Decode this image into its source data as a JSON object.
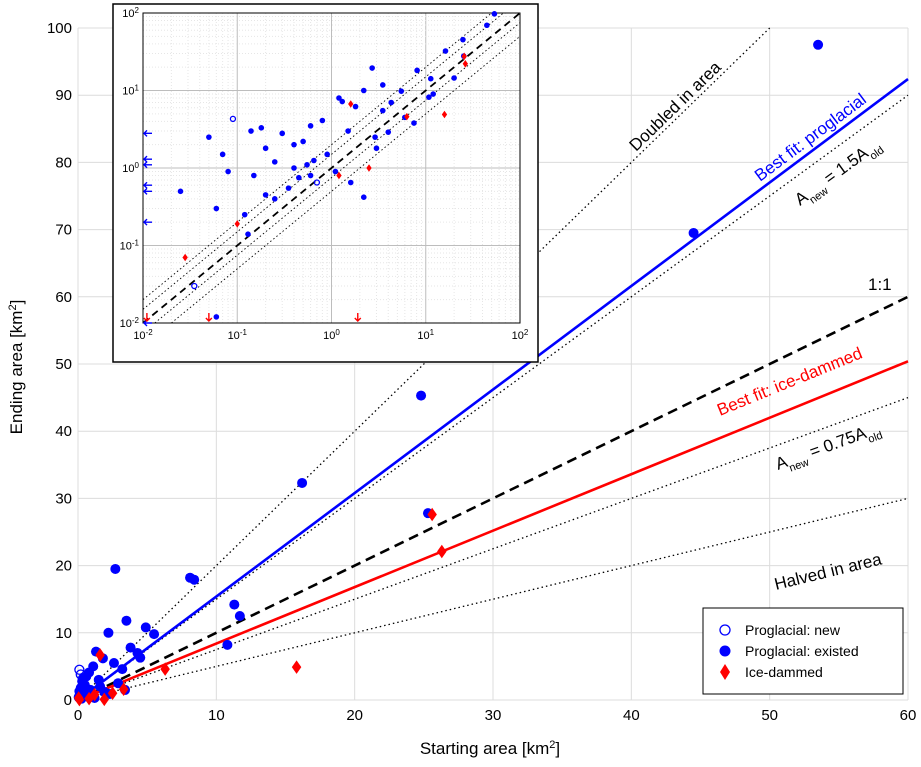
{
  "chart_data": [
    {
      "type": "scatter",
      "title": "",
      "xlabel": "Starting area [km",
      "xlabel_sup": "2",
      "xlabel_end": "]",
      "ylabel": "Ending area [km",
      "ylabel_sup": "2",
      "ylabel_end": "]",
      "xlim": [
        0,
        60
      ],
      "ylim": [
        0,
        100
      ],
      "x_ticks": [
        0,
        10,
        20,
        30,
        40,
        50,
        60
      ],
      "y_ticks": [
        0,
        10,
        20,
        30,
        40,
        50,
        60,
        70,
        80,
        90,
        100
      ],
      "grid": true,
      "legend_position": "bottom-right",
      "legend": [
        {
          "label": "Proglacial: new",
          "marker": "open-circle",
          "color": "#0000ff"
        },
        {
          "label": "Proglacial: existed",
          "marker": "filled-circle",
          "color": "#0000ff"
        },
        {
          "label": "Ice-dammed",
          "marker": "diamond",
          "color": "#ff0000"
        }
      ],
      "reference_lines": [
        {
          "label": "Doubled in area",
          "slope": 2.0,
          "style": "dotted",
          "color": "#000000"
        },
        {
          "label_main": "A",
          "label_sub1": "new",
          "label_mid": " = 1.5A",
          "label_sub2": "old",
          "slope": 1.5,
          "style": "dotted",
          "color": "#000000"
        },
        {
          "label": "1:1",
          "slope": 1.0,
          "style": "dashed",
          "color": "#000000"
        },
        {
          "label_main": "A",
          "label_sub1": "new",
          "label_mid": " = 0.75A",
          "label_sub2": "old",
          "slope": 0.75,
          "style": "dotted",
          "color": "#000000"
        },
        {
          "label": "Halved in area",
          "slope": 0.5,
          "style": "dotted",
          "color": "#000000"
        }
      ],
      "fit_lines": [
        {
          "label": "Best fit: proglacial",
          "slope": 1.54,
          "intercept": 0,
          "color": "#0000ff"
        },
        {
          "label": "Best fit: ice-dammed",
          "slope": 0.84,
          "intercept": 0,
          "color": "#ff0000"
        }
      ],
      "series": [
        {
          "name": "Proglacial: new",
          "marker": "open-circle",
          "color": "#0000ff",
          "points": [
            [
              0.1,
              4.5
            ],
            [
              0.2,
              3.8
            ],
            [
              0.1,
              0.6
            ]
          ]
        },
        {
          "name": "Proglacial: existed",
          "marker": "filled-circle",
          "color": "#0000ff",
          "points": [
            [
              53.5,
              97.5
            ],
            [
              44.5,
              69.5
            ],
            [
              24.8,
              45.3
            ],
            [
              16.2,
              32.3
            ],
            [
              25.3,
              27.8
            ],
            [
              2.7,
              19.5
            ],
            [
              8.1,
              18.2
            ],
            [
              8.4,
              17.9
            ],
            [
              11.3,
              14.2
            ],
            [
              11.7,
              12.5
            ],
            [
              3.5,
              11.8
            ],
            [
              2.2,
              10.0
            ],
            [
              4.9,
              10.8
            ],
            [
              5.5,
              9.8
            ],
            [
              10.8,
              8.2
            ],
            [
              3.8,
              7.8
            ],
            [
              4.3,
              7.0
            ],
            [
              1.3,
              7.2
            ],
            [
              1.8,
              6.2
            ],
            [
              2.6,
              5.5
            ],
            [
              3.2,
              4.6
            ],
            [
              1.1,
              5.0
            ],
            [
              0.8,
              4.1
            ],
            [
              4.5,
              6.3
            ],
            [
              0.6,
              3.5
            ],
            [
              1.5,
              3.0
            ],
            [
              2.9,
              2.5
            ],
            [
              0.3,
              2.8
            ],
            [
              0.5,
              2.2
            ],
            [
              0.2,
              1.8
            ],
            [
              0.9,
              1.5
            ],
            [
              1.9,
              1.2
            ],
            [
              0.4,
              1.0
            ],
            [
              0.15,
              0.8
            ],
            [
              3.4,
              1.5
            ],
            [
              0.7,
              0.5
            ],
            [
              1.2,
              0.3
            ],
            [
              0.25,
              0.2
            ],
            [
              0.05,
              0.4
            ],
            [
              2.3,
              0.9
            ],
            [
              0.35,
              3.2
            ],
            [
              1.6,
              2.0
            ],
            [
              0.6,
              1.2
            ],
            [
              0.1,
              1.3
            ],
            [
              0.3,
              0.6
            ]
          ]
        },
        {
          "name": "Ice-dammed",
          "marker": "diamond",
          "color": "#ff0000",
          "points": [
            [
              26.3,
              22.1
            ],
            [
              25.6,
              27.6
            ],
            [
              15.8,
              4.9
            ],
            [
              6.3,
              4.6
            ],
            [
              1.6,
              6.7
            ],
            [
              2.5,
              1.0
            ],
            [
              1.9,
              0.1
            ],
            [
              1.2,
              0.8
            ],
            [
              0.1,
              0.05
            ],
            [
              0.05,
              0.3
            ],
            [
              0.8,
              0.2
            ],
            [
              3.3,
              1.6
            ]
          ]
        }
      ]
    },
    {
      "type": "scatter",
      "title": "",
      "inset": true,
      "x_scale": "log",
      "y_scale": "log",
      "xlim": [
        0.01,
        100
      ],
      "ylim": [
        0.01,
        100
      ],
      "x_tick_labels": [
        {
          "base": "10",
          "exp": "-2"
        },
        {
          "base": "10",
          "exp": "-1"
        },
        {
          "base": "10",
          "exp": "0"
        },
        {
          "base": "10",
          "exp": "1"
        },
        {
          "base": "10",
          "exp": "2"
        }
      ],
      "y_tick_labels": [
        {
          "base": "10",
          "exp": "-2"
        },
        {
          "base": "10",
          "exp": "-1"
        },
        {
          "base": "10",
          "exp": "0"
        },
        {
          "base": "10",
          "exp": "1"
        },
        {
          "base": "10",
          "exp": "2"
        }
      ],
      "grid": true,
      "series": [
        {
          "name": "Proglacial: new",
          "marker": "open-circle",
          "color": "#0000ff",
          "points": [
            [
              0.09,
              4.3
            ],
            [
              0.7,
              0.65
            ],
            [
              0.035,
              0.03
            ]
          ]
        },
        {
          "name": "Proglacial: existed",
          "marker": "filled-circle",
          "color": "#0000ff",
          "points": [
            [
              53.5,
              97.5
            ],
            [
              44.5,
              69.5
            ],
            [
              24.8,
              45.3
            ],
            [
              16.2,
              32.3
            ],
            [
              25.3,
              27.8
            ],
            [
              2.7,
              19.5
            ],
            [
              8.1,
              18.2
            ],
            [
              11.3,
              14.2
            ],
            [
              3.5,
              11.8
            ],
            [
              2.2,
              10.0
            ],
            [
              5.5,
              9.8
            ],
            [
              10.8,
              8.2
            ],
            [
              4.3,
              7.0
            ],
            [
              1.3,
              7.2
            ],
            [
              1.8,
              6.2
            ],
            [
              0.8,
              4.1
            ],
            [
              0.6,
              3.5
            ],
            [
              1.5,
              3.0
            ],
            [
              2.9,
              2.5
            ],
            [
              0.3,
              2.8
            ],
            [
              0.5,
              2.2
            ],
            [
              0.2,
              1.8
            ],
            [
              0.9,
              1.5
            ],
            [
              0.4,
              1.0
            ],
            [
              0.15,
              0.8
            ],
            [
              0.07,
              1.5
            ],
            [
              0.05,
              2.5
            ],
            [
              0.14,
              3.0
            ],
            [
              0.18,
              3.3
            ],
            [
              0.08,
              0.9
            ],
            [
              0.025,
              0.5
            ],
            [
              0.06,
              0.3
            ],
            [
              0.13,
              0.14
            ],
            [
              0.25,
              0.4
            ],
            [
              0.35,
              0.55
            ],
            [
              0.45,
              0.75
            ],
            [
              0.55,
              1.1
            ],
            [
              0.65,
              1.25
            ],
            [
              1.1,
              0.9
            ],
            [
              1.6,
              0.65
            ],
            [
              2.2,
              0.42
            ],
            [
              3.0,
              1.8
            ],
            [
              4.0,
              2.9
            ],
            [
              6.0,
              4.5
            ],
            [
              7.5,
              3.8
            ],
            [
              12.0,
              9.0
            ],
            [
              20.0,
              14.5
            ],
            [
              1.2,
              8.0
            ],
            [
              3.5,
              5.5
            ],
            [
              0.12,
              0.25
            ],
            [
              0.06,
              0.012
            ],
            [
              0.2,
              0.45
            ],
            [
              0.4,
              2.0
            ],
            [
              0.25,
              1.2
            ],
            [
              0.6,
              0.8
            ]
          ]
        },
        {
          "name": "Ice-dammed",
          "marker": "diamond",
          "color": "#ff0000",
          "points": [
            [
              26.3,
              22.1
            ],
            [
              25.6,
              27.6
            ],
            [
              15.8,
              4.9
            ],
            [
              6.3,
              4.6
            ],
            [
              1.6,
              6.7
            ],
            [
              2.5,
              1.0
            ],
            [
              1.2,
              0.8
            ],
            [
              0.028,
              0.07
            ],
            [
              0.1,
              0.19
            ]
          ]
        }
      ],
      "arrows_left": [
        {
          "y": 2.8
        },
        {
          "y": 1.3
        },
        {
          "y": 1.1
        },
        {
          "y": 0.6
        },
        {
          "y": 0.5
        },
        {
          "y": 0.2
        },
        {
          "y": 0.01
        }
      ],
      "arrows_down": [
        {
          "x": 0.05,
          "color": "#ff0000"
        },
        {
          "x": 1.9,
          "color": "#ff0000"
        },
        {
          "x": 0.011,
          "color": "#ff0000"
        }
      ]
    }
  ]
}
